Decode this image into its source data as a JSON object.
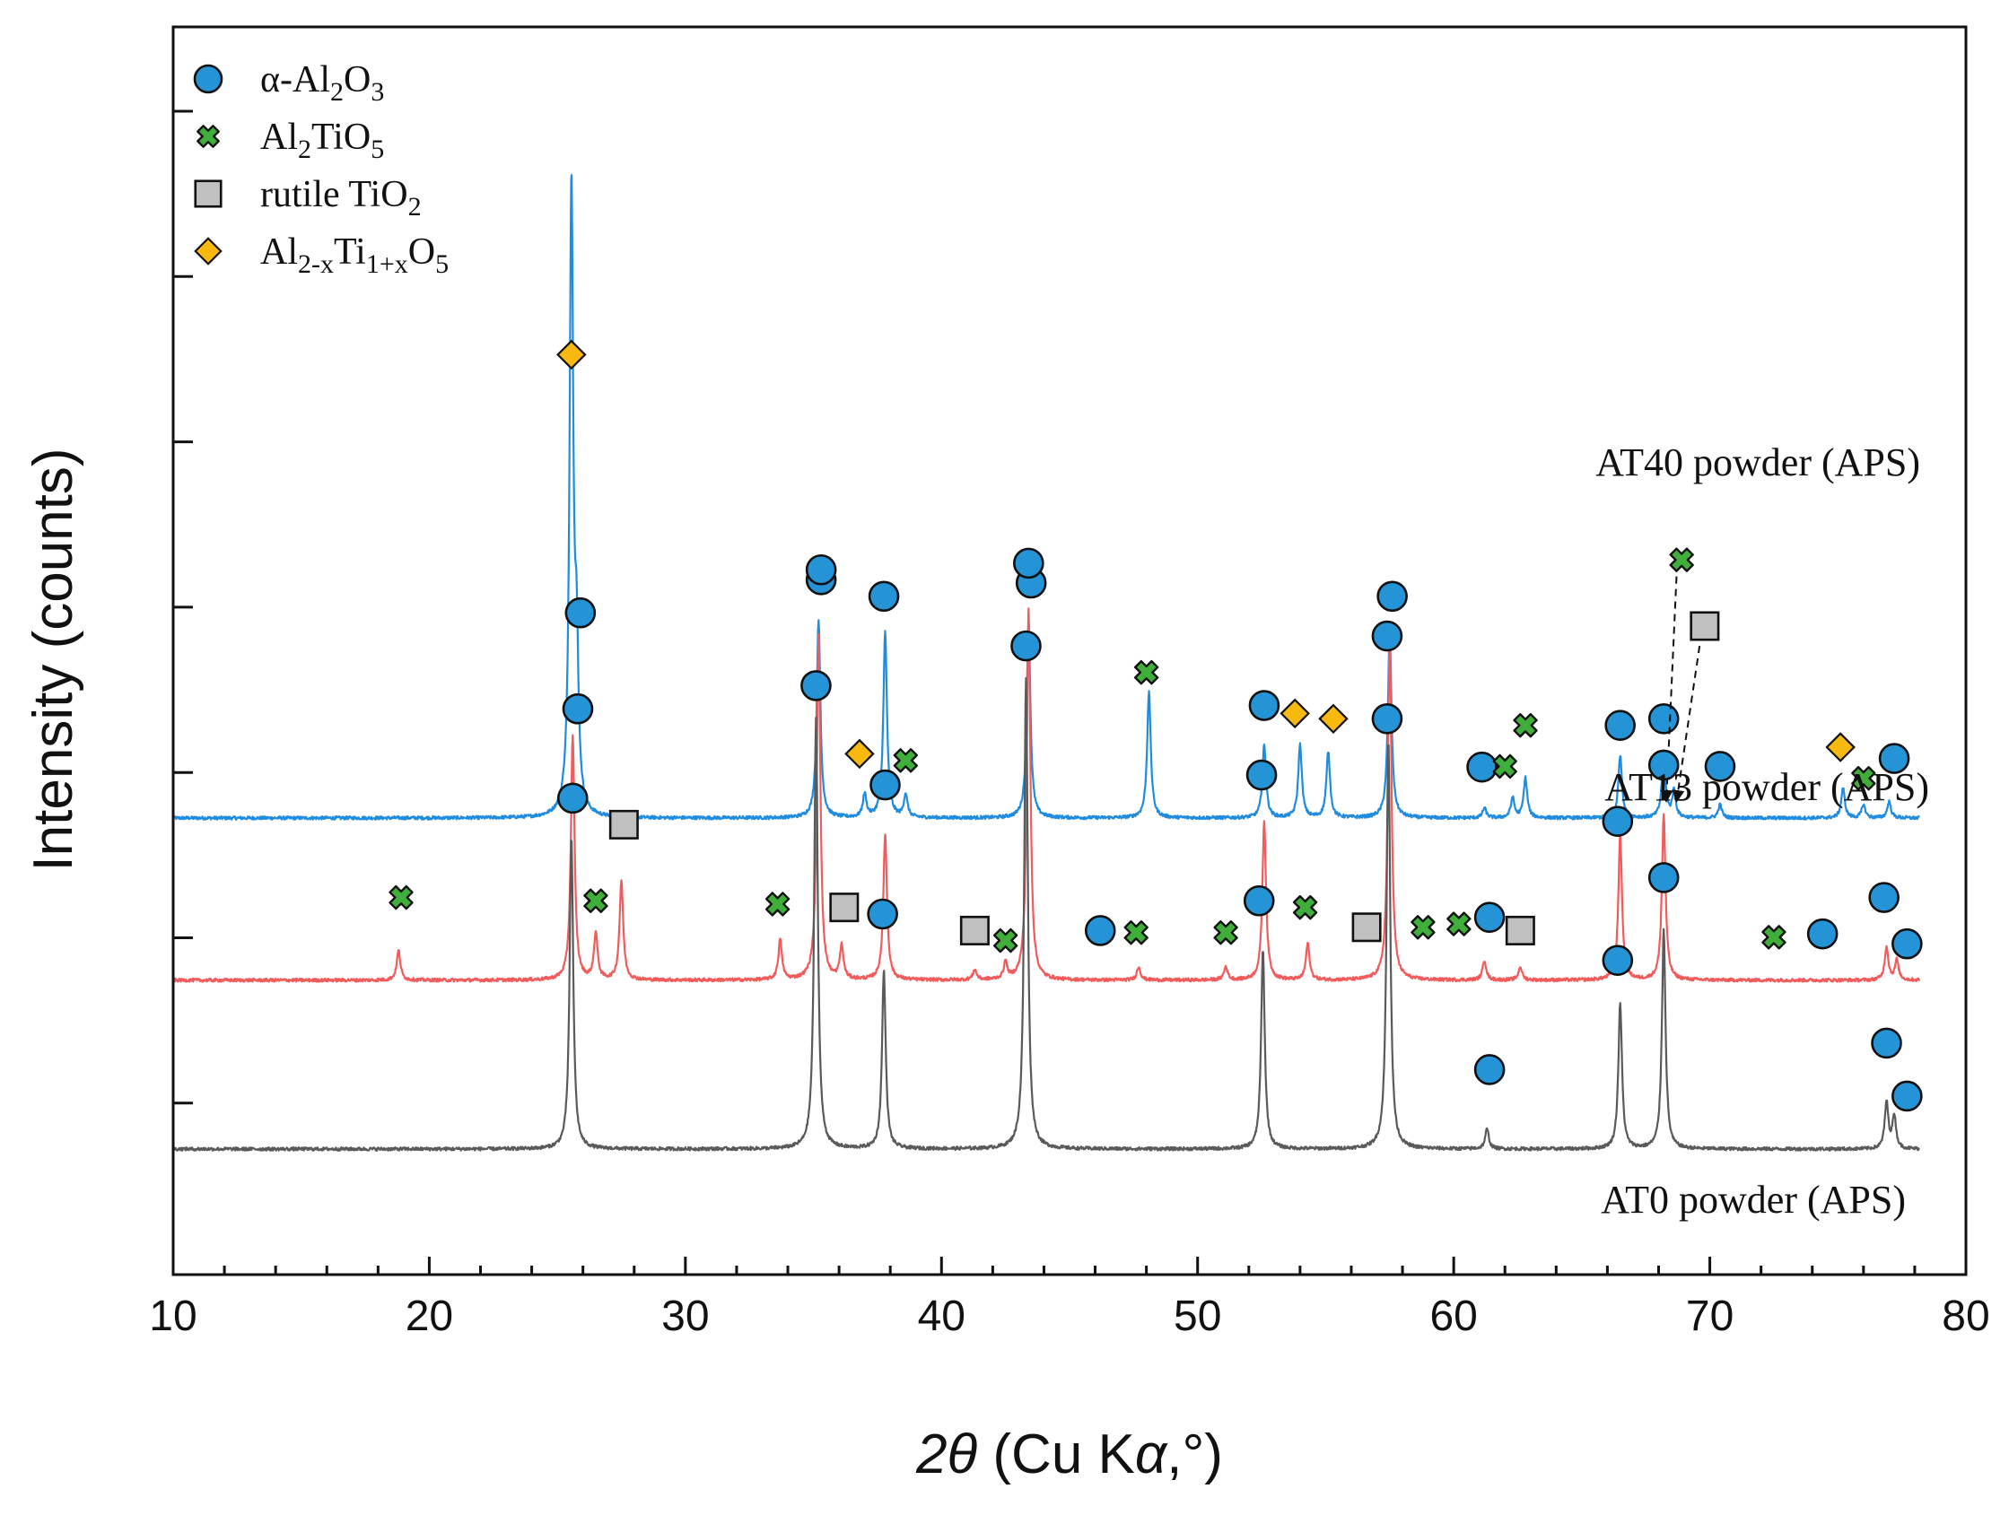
{
  "chart_data": {
    "type": "line",
    "title": "",
    "xlabel": "2θ (Cu Kα,°)",
    "xlabel_parts": {
      "var": "2θ",
      "rest": " (Cu K",
      "alpha": "α",
      "tail": ",°)"
    },
    "ylabel": "Intensity (counts)",
    "xlim": [
      10,
      80
    ],
    "x_ticks": [
      10,
      20,
      30,
      40,
      50,
      60,
      70,
      80
    ],
    "x_tick_labels": [
      "10",
      "20",
      "30",
      "40",
      "50",
      "60",
      "70",
      "80"
    ],
    "y_tick_count": 7,
    "y_ticklabels_shown": false,
    "legend_position": "top-left",
    "phases": [
      {
        "key": "alpha",
        "marker": "circle",
        "color": "#2494d6",
        "label_parts": [
          "α-Al",
          "2",
          "O",
          "3"
        ]
      },
      {
        "key": "at",
        "marker": "cross",
        "color": "#3fae3a",
        "label_parts": [
          "Al",
          "2",
          "TiO",
          "5"
        ]
      },
      {
        "key": "rutile",
        "marker": "square",
        "color": "#c0c0c0",
        "label_parts": [
          "rutile TiO",
          "2"
        ]
      },
      {
        "key": "ati",
        "marker": "diamond",
        "color": "#f7b80f",
        "label_parts": [
          "Al",
          "2-x",
          "Ti",
          "1+x",
          "O",
          "5"
        ]
      }
    ],
    "series": [
      {
        "name": "AT40 powder (APS)",
        "color": "#1f8ce0",
        "offset": 5.0,
        "peaks": [
          [
            25.55,
            9.5
          ],
          [
            25.75,
            2.2
          ],
          [
            35.2,
            3.0
          ],
          [
            37.0,
            0.35
          ],
          [
            37.8,
            2.8
          ],
          [
            38.6,
            0.35
          ],
          [
            43.4,
            3.0
          ],
          [
            48.1,
            1.9
          ],
          [
            52.6,
            1.1
          ],
          [
            54.0,
            1.1
          ],
          [
            55.1,
            1.0
          ],
          [
            57.5,
            2.8
          ],
          [
            61.2,
            0.15
          ],
          [
            62.3,
            0.3
          ],
          [
            62.8,
            0.6
          ],
          [
            66.5,
            0.95
          ],
          [
            68.2,
            1.0
          ],
          [
            68.6,
            0.4
          ],
          [
            70.4,
            0.2
          ],
          [
            75.2,
            0.45
          ],
          [
            76.0,
            0.2
          ],
          [
            77.0,
            0.25
          ]
        ],
        "markers": [
          {
            "phase": "ati",
            "x": 25.55,
            "y": 7.0
          },
          {
            "phase": "alpha",
            "x": 25.9,
            "y": 3.1
          },
          {
            "phase": "alpha",
            "x": 35.3,
            "y": 3.6
          },
          {
            "phase": "ati",
            "x": 36.8,
            "y": 0.97
          },
          {
            "phase": "alpha",
            "x": 37.75,
            "y": 3.35
          },
          {
            "phase": "at",
            "x": 38.6,
            "y": 0.87
          },
          {
            "phase": "alpha",
            "x": 43.5,
            "y": 3.55
          },
          {
            "phase": "at",
            "x": 48.0,
            "y": 2.2
          },
          {
            "phase": "alpha",
            "x": 52.6,
            "y": 1.7
          },
          {
            "phase": "ati",
            "x": 53.8,
            "y": 1.58
          },
          {
            "phase": "ati",
            "x": 55.3,
            "y": 1.5
          },
          {
            "phase": "alpha",
            "x": 57.6,
            "y": 3.35
          },
          {
            "phase": "alpha",
            "x": 61.1,
            "y": 0.77
          },
          {
            "phase": "at",
            "x": 62.0,
            "y": 0.78
          },
          {
            "phase": "at",
            "x": 62.8,
            "y": 1.4
          },
          {
            "phase": "alpha",
            "x": 66.5,
            "y": 1.4
          },
          {
            "phase": "alpha",
            "x": 68.2,
            "y": 1.5
          },
          {
            "phase": "at",
            "x": 68.9,
            "y": 3.9
          },
          {
            "phase": "rutile",
            "x": 69.8,
            "y": 2.9
          },
          {
            "phase": "alpha",
            "x": 70.4,
            "y": 0.78
          },
          {
            "phase": "ati",
            "x": 75.1,
            "y": 1.07
          },
          {
            "phase": "at",
            "x": 76.0,
            "y": 0.6
          },
          {
            "phase": "alpha",
            "x": 77.2,
            "y": 0.9
          }
        ],
        "arrows": [
          {
            "from": [
              68.7,
              3.65
            ],
            "to": [
              68.3,
              0.25
            ]
          },
          {
            "from": [
              69.6,
              2.6
            ],
            "to": [
              68.7,
              0.25
            ]
          }
        ]
      },
      {
        "name": "AT13 powder (APS)",
        "color": "#f25b5b",
        "offset": 2.55,
        "peaks": [
          [
            18.8,
            0.45
          ],
          [
            25.6,
            3.7
          ],
          [
            26.5,
            0.7
          ],
          [
            27.5,
            1.5
          ],
          [
            33.7,
            0.6
          ],
          [
            35.2,
            5.2
          ],
          [
            36.1,
            0.5
          ],
          [
            37.8,
            2.2
          ],
          [
            41.3,
            0.15
          ],
          [
            42.5,
            0.25
          ],
          [
            43.4,
            5.6
          ],
          [
            47.7,
            0.2
          ],
          [
            51.1,
            0.2
          ],
          [
            52.6,
            2.4
          ],
          [
            54.3,
            0.55
          ],
          [
            57.5,
            5.2
          ],
          [
            61.2,
            0.3
          ],
          [
            62.6,
            0.2
          ],
          [
            66.5,
            2.2
          ],
          [
            68.2,
            2.5
          ],
          [
            76.9,
            0.5
          ],
          [
            77.3,
            0.3
          ]
        ],
        "markers": [
          {
            "phase": "at",
            "x": 18.9,
            "y": 1.25
          },
          {
            "phase": "alpha",
            "x": 25.8,
            "y": 4.1
          },
          {
            "phase": "at",
            "x": 26.5,
            "y": 1.2
          },
          {
            "phase": "rutile",
            "x": 27.6,
            "y": 2.35
          },
          {
            "phase": "at",
            "x": 33.6,
            "y": 1.15
          },
          {
            "phase": "alpha",
            "x": 35.3,
            "y": 6.2
          },
          {
            "phase": "rutile",
            "x": 36.2,
            "y": 1.1
          },
          {
            "phase": "alpha",
            "x": 37.8,
            "y": 2.95
          },
          {
            "phase": "rutile",
            "x": 41.3,
            "y": 0.75
          },
          {
            "phase": "at",
            "x": 42.5,
            "y": 0.6
          },
          {
            "phase": "alpha",
            "x": 43.4,
            "y": 6.3
          },
          {
            "phase": "alpha",
            "x": 46.2,
            "y": 0.75
          },
          {
            "phase": "at",
            "x": 47.6,
            "y": 0.72
          },
          {
            "phase": "at",
            "x": 51.1,
            "y": 0.72
          },
          {
            "phase": "alpha",
            "x": 52.5,
            "y": 3.1
          },
          {
            "phase": "at",
            "x": 54.2,
            "y": 1.1
          },
          {
            "phase": "rutile",
            "x": 56.6,
            "y": 0.8
          },
          {
            "phase": "alpha",
            "x": 57.4,
            "y": 5.2
          },
          {
            "phase": "at",
            "x": 58.8,
            "y": 0.8
          },
          {
            "phase": "at",
            "x": 60.2,
            "y": 0.85
          },
          {
            "phase": "alpha",
            "x": 61.4,
            "y": 0.95
          },
          {
            "phase": "rutile",
            "x": 62.6,
            "y": 0.75
          },
          {
            "phase": "alpha",
            "x": 66.4,
            "y": 2.4
          },
          {
            "phase": "alpha",
            "x": 68.2,
            "y": 3.25
          },
          {
            "phase": "at",
            "x": 72.5,
            "y": 0.65
          },
          {
            "phase": "alpha",
            "x": 74.4,
            "y": 0.7
          },
          {
            "phase": "alpha",
            "x": 76.8,
            "y": 1.25
          },
          {
            "phase": "alpha",
            "x": 77.7,
            "y": 0.55
          }
        ],
        "arrows": []
      },
      {
        "name": "AT0 powder (APS)",
        "color": "#5a5a5a",
        "offset": 0.0,
        "peaks": [
          [
            25.55,
            4.7
          ],
          [
            35.1,
            6.5
          ],
          [
            37.75,
            2.7
          ],
          [
            43.3,
            7.1
          ],
          [
            52.55,
            3.0
          ],
          [
            57.45,
            6.2
          ],
          [
            61.3,
            0.3
          ],
          [
            66.5,
            2.2
          ],
          [
            68.2,
            3.3
          ],
          [
            76.9,
            0.7
          ],
          [
            77.2,
            0.5
          ]
        ],
        "markers": [
          {
            "phase": "alpha",
            "x": 25.6,
            "y": 5.3
          },
          {
            "phase": "alpha",
            "x": 35.1,
            "y": 7.0
          },
          {
            "phase": "alpha",
            "x": 37.7,
            "y": 3.55
          },
          {
            "phase": "alpha",
            "x": 43.3,
            "y": 7.6
          },
          {
            "phase": "alpha",
            "x": 52.4,
            "y": 3.75
          },
          {
            "phase": "alpha",
            "x": 57.4,
            "y": 6.5
          },
          {
            "phase": "alpha",
            "x": 61.4,
            "y": 1.2
          },
          {
            "phase": "alpha",
            "x": 66.4,
            "y": 2.85
          },
          {
            "phase": "alpha",
            "x": 68.2,
            "y": 4.1
          },
          {
            "phase": "alpha",
            "x": 76.9,
            "y": 1.6
          },
          {
            "phase": "alpha",
            "x": 77.7,
            "y": 0.8
          }
        ],
        "arrows": []
      }
    ]
  }
}
